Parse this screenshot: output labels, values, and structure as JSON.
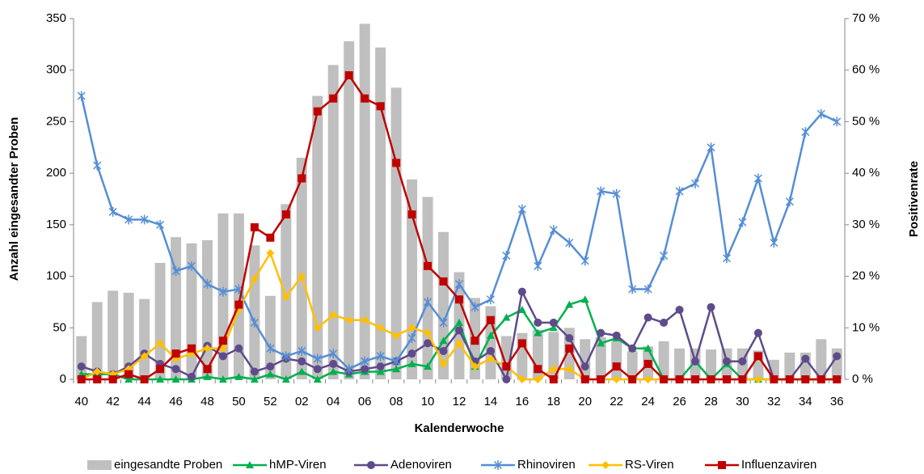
{
  "chart_data": {
    "type": "bar",
    "y_label": "Anzahl eingesandter Proben",
    "y2_label": "Positivenrate",
    "x_label": "Kalenderwoche",
    "categories": [
      "40",
      null,
      "42",
      null,
      "44",
      null,
      "46",
      null,
      "48",
      null,
      "50",
      null,
      "52",
      null,
      "02",
      null,
      "04",
      null,
      "06",
      null,
      "08",
      null,
      "10",
      null,
      "12",
      null,
      "14",
      null,
      "16",
      null,
      "18",
      null,
      "20",
      null,
      "22",
      null,
      "24",
      null,
      "26",
      null,
      "28",
      null,
      "30",
      null,
      "32",
      null,
      "34",
      null,
      "36"
    ],
    "ylim": [
      0,
      350
    ],
    "yticks": [
      0,
      50,
      100,
      150,
      200,
      250,
      300,
      350
    ],
    "y2lim": [
      0,
      70
    ],
    "y2ticks": [
      {
        "value": 0,
        "label": "0 %"
      },
      {
        "value": 10,
        "label": "10 %"
      },
      {
        "value": 20,
        "label": "20 %"
      },
      {
        "value": 30,
        "label": "30 %"
      },
      {
        "value": 40,
        "label": "40 %"
      },
      {
        "value": 50,
        "label": "50 %"
      },
      {
        "value": 60,
        "label": "60 %"
      },
      {
        "value": 70,
        "label": "70 %"
      }
    ],
    "series": [
      {
        "name": "eingesandte Proben",
        "type": "bar",
        "axis": "y",
        "color": "#bfbfbf",
        "values": [
          42,
          75,
          86,
          84,
          78,
          113,
          138,
          132,
          135,
          161,
          161,
          130,
          81,
          170,
          215,
          275,
          305,
          328,
          345,
          322,
          283,
          194,
          177,
          143,
          104,
          79,
          71,
          42,
          45,
          48,
          46,
          50,
          39,
          41,
          37,
          27,
          32,
          37,
          30,
          30,
          29,
          30,
          30,
          28,
          19,
          26,
          26,
          39,
          30
        ]
      },
      {
        "name": "hMP-Viren",
        "type": "line",
        "axis": "y2",
        "color": "#00b050",
        "marker": "triangle",
        "values": [
          1,
          1,
          1,
          0,
          0,
          0,
          0,
          0,
          0.5,
          0,
          0.5,
          0,
          1,
          0,
          1.5,
          0,
          1.5,
          1,
          1.5,
          1.5,
          2,
          3,
          2.5,
          7.5,
          11,
          2.5,
          8.5,
          12,
          13.5,
          9,
          10,
          14.5,
          15.5,
          7,
          8,
          6,
          6,
          0,
          0,
          3.5,
          0,
          3,
          0,
          0,
          0,
          0,
          0,
          0,
          0
        ]
      },
      {
        "name": "Adenoviren",
        "type": "line",
        "axis": "y2",
        "color": "#5f4b8b",
        "marker": "circle",
        "values": [
          2.5,
          1.5,
          1,
          2.5,
          5,
          3,
          2,
          0.5,
          6.5,
          4.5,
          6,
          1.5,
          2.5,
          4,
          3.5,
          2,
          3,
          1.5,
          2,
          2.5,
          3.5,
          5,
          7,
          5.5,
          9.5,
          3.5,
          5.5,
          0,
          17,
          11,
          11,
          8,
          2.5,
          9,
          8.5,
          6,
          12,
          11,
          13.5,
          3.5,
          14,
          3.5,
          3.5,
          9,
          0,
          0,
          4,
          0,
          4.5
        ]
      },
      {
        "name": "Rhinoviren",
        "type": "line",
        "axis": "y2",
        "color": "#558ed5",
        "marker": "asterisk",
        "values": [
          55,
          41.5,
          32.5,
          31,
          31,
          30,
          21,
          22,
          18.5,
          17,
          17.5,
          11,
          6,
          4.5,
          5.5,
          4,
          5,
          2,
          3.5,
          4.5,
          3.5,
          8,
          15,
          11,
          18.5,
          14,
          15.5,
          24,
          33,
          22,
          29,
          26.5,
          23,
          36.5,
          36,
          17.5,
          17.5,
          24,
          36.5,
          38,
          45,
          23.5,
          30.5,
          39,
          26.5,
          34.5,
          48,
          51.5,
          50
        ]
      },
      {
        "name": "RS-Viren",
        "type": "line",
        "axis": "y2",
        "color": "#ffc000",
        "marker": "diamond",
        "values": [
          0,
          1.5,
          1,
          2,
          4.5,
          7,
          4,
          5,
          6,
          6,
          13.5,
          19.5,
          24.5,
          16,
          20,
          10,
          12.5,
          11.5,
          11.5,
          10,
          8.5,
          10,
          9,
          3,
          7,
          2.5,
          4,
          2.5,
          0,
          0,
          2,
          2,
          0,
          0,
          0,
          0,
          0,
          0,
          0,
          0,
          0,
          0,
          0,
          0,
          0,
          0,
          0,
          0,
          0
        ]
      },
      {
        "name": "Influenzaviren",
        "type": "line",
        "axis": "y2",
        "color": "#c00000",
        "marker": "square",
        "values": [
          0,
          0,
          0,
          1,
          0,
          2,
          5,
          6,
          2,
          7.5,
          14.5,
          29.5,
          27.5,
          32,
          39,
          52,
          54.5,
          59,
          54.5,
          53,
          42,
          32,
          22,
          19,
          15.5,
          7.5,
          11.5,
          2.5,
          7,
          2,
          0,
          6,
          0,
          0,
          2.5,
          0,
          3,
          0,
          0,
          0,
          0,
          0,
          0,
          4.5,
          0,
          0,
          0,
          0,
          0
        ]
      }
    ]
  }
}
